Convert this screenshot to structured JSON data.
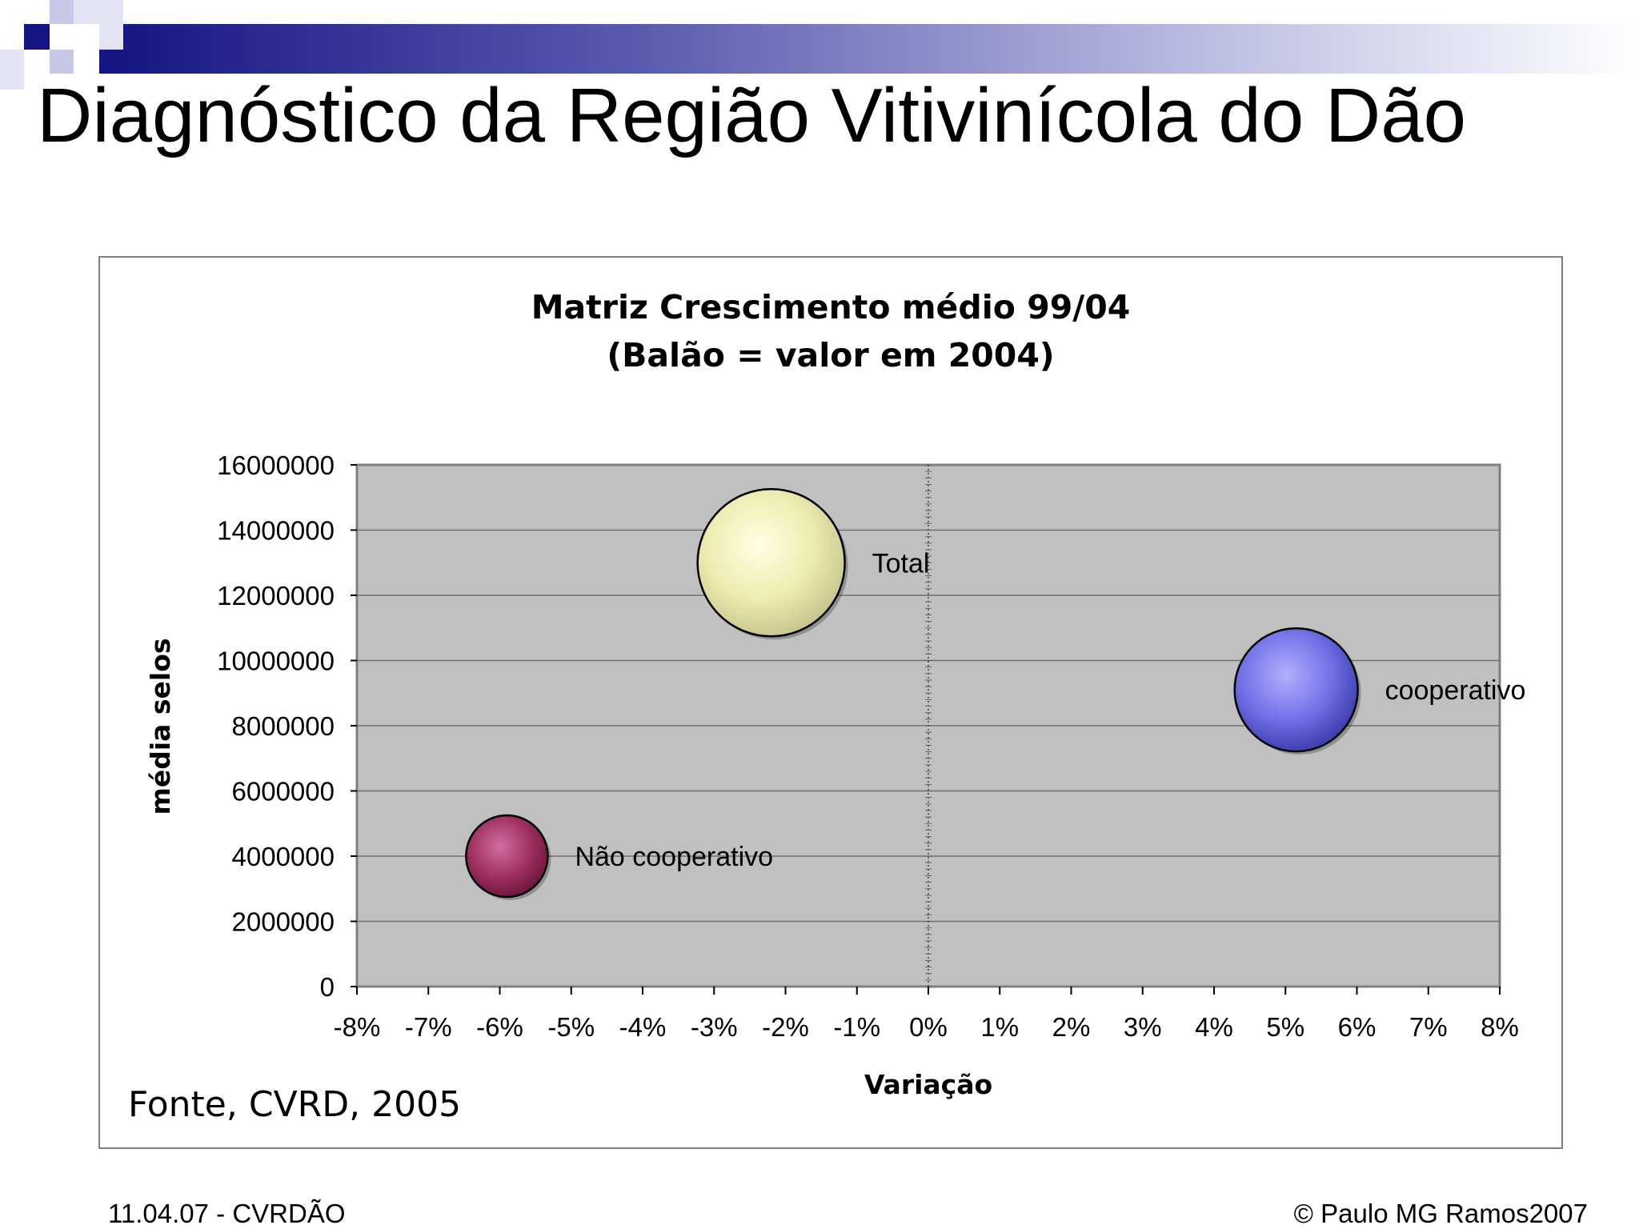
{
  "slide": {
    "title": "Diagnóstico da Região Vitivinícola do Dão",
    "source_note": "Fonte, CVRD, 2005",
    "footer_left": "11.04.07 - CVRDÃO",
    "footer_right": "© Paulo MG Ramos2007",
    "header_color": "#1a1a8c"
  },
  "chart_data": {
    "type": "bubble",
    "title_line1": "Matriz Crescimento médio 99/04",
    "title_line2": "(Balão = valor em 2004)",
    "xlabel": "Variação",
    "ylabel": "média selos",
    "xlim": [
      -8,
      8
    ],
    "ylim": [
      0,
      16000000
    ],
    "x_ticks": [
      "-8%",
      "-7%",
      "-6%",
      "-5%",
      "-4%",
      "-3%",
      "-2%",
      "-1%",
      "0%",
      "1%",
      "2%",
      "3%",
      "4%",
      "5%",
      "6%",
      "7%",
      "8%"
    ],
    "y_ticks": [
      "0",
      "2000000",
      "4000000",
      "6000000",
      "8000000",
      "10000000",
      "12000000",
      "14000000",
      "16000000"
    ],
    "plot_background": "#c0c0c0",
    "grid": "horizontal",
    "series": [
      {
        "name": "Total",
        "x": -2.2,
        "y": 13000000,
        "size": 13000000,
        "color": "#f5f5c0"
      },
      {
        "name": "cooperativo",
        "x": 5.15,
        "y": 9100000,
        "size": 9100000,
        "color": "#7a7af0"
      },
      {
        "name": "Não cooperativo",
        "x": -5.9,
        "y": 4000000,
        "size": 4000000,
        "color": "#a0305f"
      }
    ]
  }
}
